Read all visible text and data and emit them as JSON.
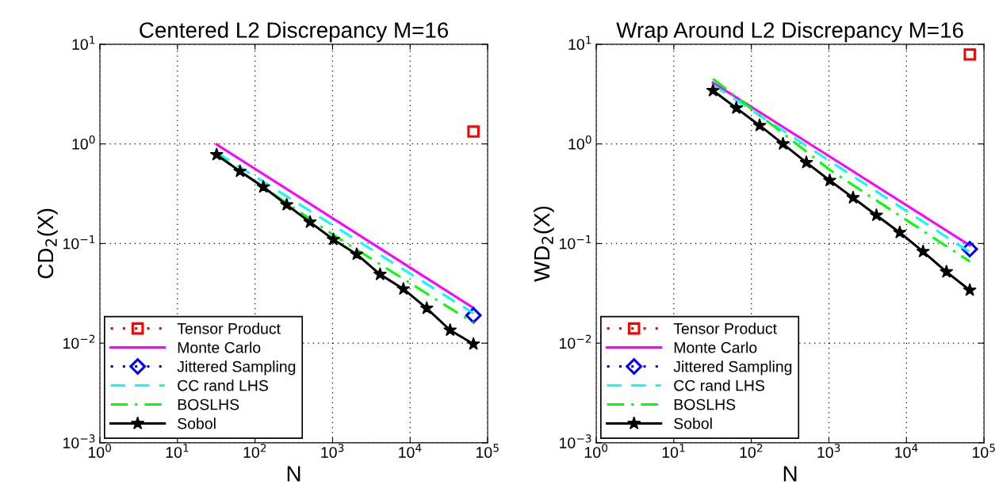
{
  "chart_data": [
    {
      "type": "line",
      "title": "Centered L2 Discrepancy M=16",
      "xlabel": "N",
      "ylabel": "CD$_{2}$(X)",
      "log": "xy",
      "grid": true,
      "legend": "bottom left",
      "xlim": [
        1,
        100000
      ],
      "ylim": [
        0.001,
        10
      ],
      "xticks": [
        {
          "value": 1,
          "label": "10$^{0}$"
        },
        {
          "value": 10,
          "label": "10$^{1}$"
        },
        {
          "value": 100,
          "label": "10$^{2}$"
        },
        {
          "value": 1000,
          "label": "10$^{3}$"
        },
        {
          "value": 10000,
          "label": "10$^{4}$"
        },
        {
          "value": 100000,
          "label": "10$^{5}$"
        }
      ],
      "yticks": [
        {
          "value": 0.001,
          "label": "10$^{−3}$"
        },
        {
          "value": 0.01,
          "label": "10$^{−2}$"
        },
        {
          "value": 0.1,
          "label": "10$^{−1}$"
        },
        {
          "value": 1,
          "label": "10$^{0}$"
        },
        {
          "value": 10,
          "label": "10$^{1}$"
        }
      ],
      "series": [
        {
          "name": "Tensor Product",
          "color": "#ff0000",
          "marker": "square",
          "line_style": "dotted",
          "x": [
            65536
          ],
          "values": [
            1.33
          ]
        },
        {
          "name": "Monte Carlo",
          "color": "#ff00ff",
          "marker": "none",
          "line_style": "solid",
          "x": [
            32,
            65536
          ],
          "values": [
            0.99,
            0.0226
          ]
        },
        {
          "name": "Jittered Sampling",
          "color": "#0000ff",
          "marker": "diamond",
          "line_style": "dotted",
          "x": [
            65536
          ],
          "values": [
            0.019
          ]
        },
        {
          "name": "CC rand LHS",
          "color": "#00ffff",
          "marker": "none",
          "line_style": "dashed",
          "x": [
            32,
            65536
          ],
          "values": [
            0.82,
            0.02
          ]
        },
        {
          "name": "BOSLHS",
          "color": "#00ff00",
          "marker": "none",
          "line_style": "dashdot",
          "x": [
            32,
            1024,
            65536
          ],
          "values": [
            0.77,
            0.122,
            0.016
          ]
        },
        {
          "name": "Sobol",
          "color": "#000000",
          "marker": "star",
          "line_style": "solid",
          "x": [
            32,
            64,
            128,
            256,
            512,
            1024,
            2048,
            4096,
            8192,
            16384,
            32768,
            65536
          ],
          "values": [
            0.78,
            0.53,
            0.37,
            0.245,
            0.164,
            0.11,
            0.078,
            0.049,
            0.035,
            0.0224,
            0.0135,
            0.0098
          ]
        }
      ]
    },
    {
      "type": "line",
      "title": "Wrap Around L2 Discrepancy M=16",
      "xlabel": "N",
      "ylabel": "WD$_{2}$(X)",
      "log": "xy",
      "grid": true,
      "legend": "bottom left",
      "xlim": [
        1,
        100000
      ],
      "ylim": [
        0.001,
        10
      ],
      "xticks": [
        {
          "value": 1,
          "label": "10$^{0}$"
        },
        {
          "value": 10,
          "label": "10$^{1}$"
        },
        {
          "value": 100,
          "label": "10$^{2}$"
        },
        {
          "value": 1000,
          "label": "10$^{3}$"
        },
        {
          "value": 10000,
          "label": "10$^{4}$"
        },
        {
          "value": 100000,
          "label": "10$^{5}$"
        }
      ],
      "yticks": [
        {
          "value": 0.001,
          "label": "10$^{−3}$"
        },
        {
          "value": 0.01,
          "label": "10$^{−2}$"
        },
        {
          "value": 0.1,
          "label": "10$^{−1}$"
        },
        {
          "value": 1,
          "label": "10$^{0}$"
        },
        {
          "value": 10,
          "label": "10$^{1}$"
        }
      ],
      "series": [
        {
          "name": "Tensor Product",
          "color": "#ff0000",
          "marker": "square",
          "line_style": "dotted",
          "x": [
            65536
          ],
          "values": [
            7.9
          ]
        },
        {
          "name": "Monte Carlo",
          "color": "#ff00ff",
          "marker": "none",
          "line_style": "solid",
          "x": [
            32,
            65536
          ],
          "values": [
            4.13,
            0.096
          ]
        },
        {
          "name": "Jittered Sampling",
          "color": "#0000ff",
          "marker": "diamond",
          "line_style": "dotted",
          "x": [
            65536
          ],
          "values": [
            0.088
          ]
        },
        {
          "name": "CC rand LHS",
          "color": "#00ffff",
          "marker": "none",
          "line_style": "dashed",
          "x": [
            32,
            65536
          ],
          "values": [
            3.9,
            0.082
          ]
        },
        {
          "name": "BOSLHS",
          "color": "#00ff00",
          "marker": "none",
          "line_style": "dashdot",
          "x": [
            32,
            1024,
            65536
          ],
          "values": [
            4.5,
            0.55,
            0.066
          ]
        },
        {
          "name": "Sobol",
          "color": "#000000",
          "marker": "star",
          "line_style": "solid",
          "x": [
            32,
            64,
            128,
            256,
            512,
            1024,
            2048,
            4096,
            8192,
            16384,
            32768,
            65536
          ],
          "values": [
            3.43,
            2.29,
            1.53,
            1.0,
            0.65,
            0.43,
            0.288,
            0.192,
            0.129,
            0.083,
            0.052,
            0.034
          ]
        }
      ]
    }
  ]
}
